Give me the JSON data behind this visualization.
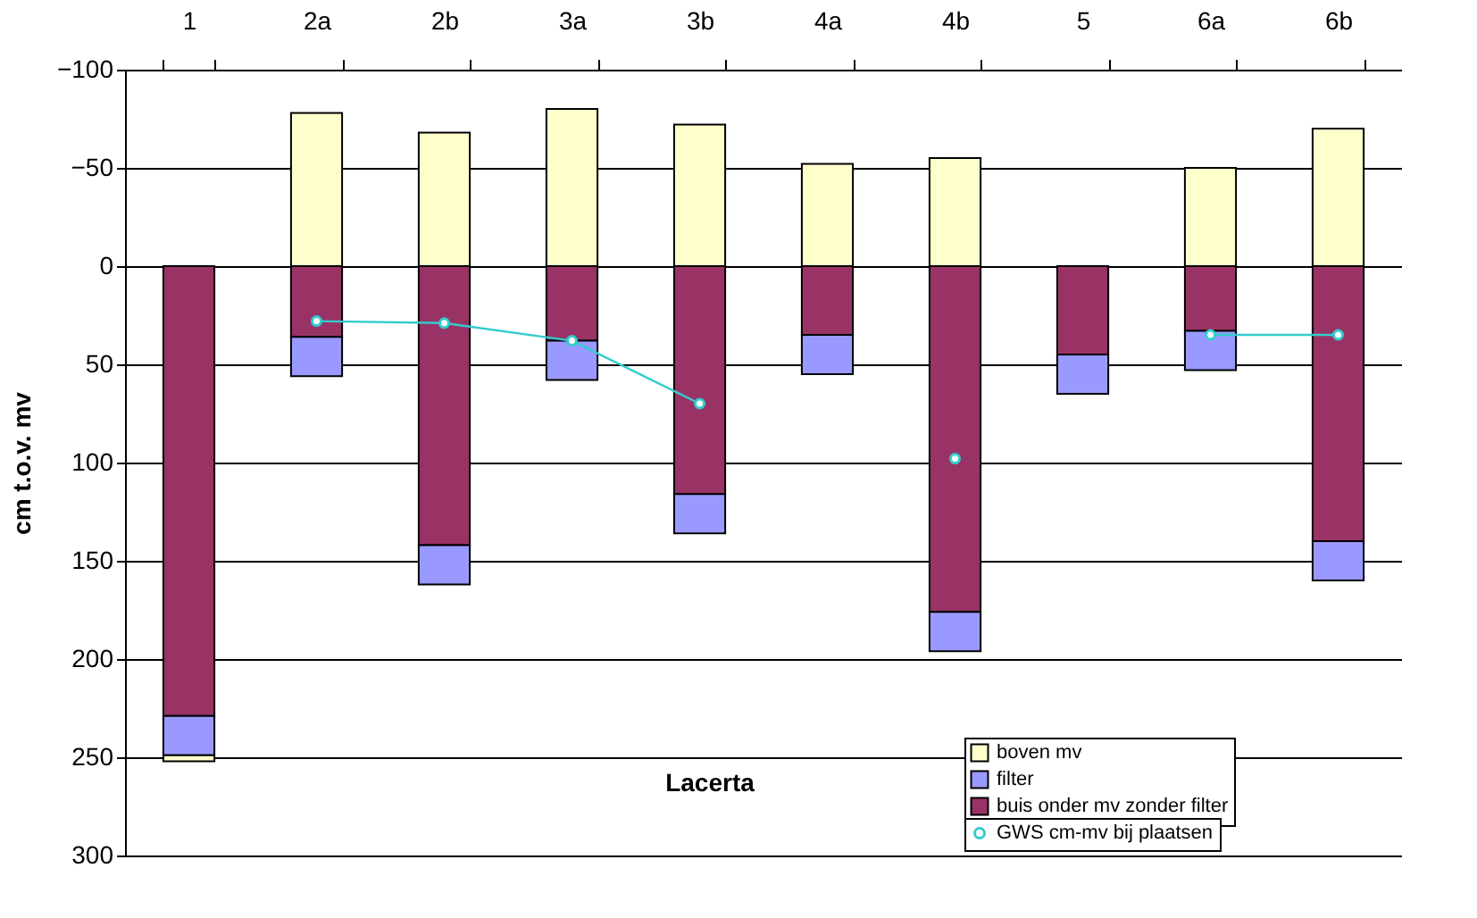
{
  "chart_data": {
    "type": "bar",
    "stacked": true,
    "ylabel": "cm t.o.v. mv",
    "categories": [
      "1",
      "2a",
      "2b",
      "3a",
      "3b",
      "4a",
      "4b",
      "5",
      "6a",
      "6b"
    ],
    "series": [
      {
        "name": "buis onder mv zonder filter",
        "color": "#993366",
        "values": [
          229,
          36,
          142,
          38,
          116,
          35,
          176,
          45,
          33,
          140
        ]
      },
      {
        "name": "filter",
        "color": "#9999ff",
        "values": [
          20,
          20,
          20,
          20,
          20,
          20,
          20,
          20,
          20,
          20
        ]
      },
      {
        "name": "boven mv",
        "color": "#ffffcc",
        "values": [
          3,
          -78,
          -68,
          -80,
          -72,
          -52,
          -55,
          null,
          -50,
          -70
        ]
      },
      {
        "name": "GWS cm-mv bij plaatsen",
        "type": "line",
        "color": "#33cccc",
        "marker": "circle",
        "line_style": "solid",
        "values": [
          null,
          28,
          29,
          38,
          70,
          null,
          98,
          null,
          35,
          35
        ]
      }
    ],
    "ylim": [
      300,
      -100
    ],
    "yticks": [
      -100,
      -50,
      0,
      50,
      100,
      150,
      200,
      250,
      300
    ],
    "grid": "y",
    "legend": "bottom right",
    "annotations": [
      "Lacerta"
    ]
  }
}
